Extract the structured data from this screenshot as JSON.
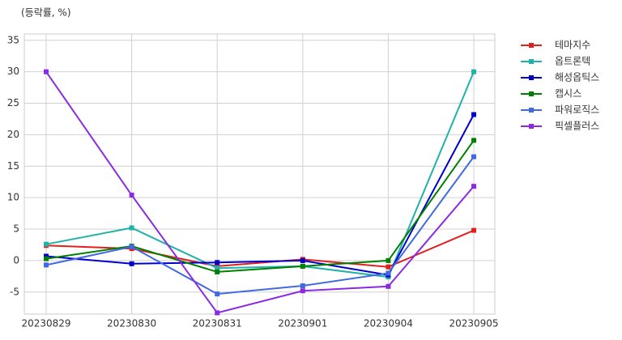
{
  "chart_data": {
    "type": "line",
    "title": "(등락률, %)",
    "categories": [
      "20230829",
      "20230830",
      "20230831",
      "20230901",
      "20230904",
      "20230905"
    ],
    "series": [
      {
        "name": "테마지수",
        "color": "#e0201c",
        "values": [
          2.4,
          1.9,
          -0.9,
          0.2,
          -1.0,
          4.8
        ]
      },
      {
        "name": "옵트론텍",
        "color": "#20b2aa",
        "values": [
          2.6,
          5.2,
          -1.2,
          -0.9,
          -2.6,
          30.0
        ]
      },
      {
        "name": "해성옵틱스",
        "color": "#0000cd",
        "values": [
          0.7,
          -0.5,
          -0.3,
          0.0,
          -2.3,
          23.2
        ]
      },
      {
        "name": "캡시스",
        "color": "#008000",
        "values": [
          0.3,
          2.3,
          -1.8,
          -0.9,
          0.0,
          19.1
        ]
      },
      {
        "name": "파워로직스",
        "color": "#4169e1",
        "values": [
          -0.7,
          2.2,
          -5.3,
          -4.0,
          -2.0,
          16.5
        ]
      },
      {
        "name": "픽셀플러스",
        "color": "#8a2be2",
        "values": [
          30.0,
          10.4,
          -8.3,
          -4.8,
          -4.1,
          11.8
        ]
      }
    ],
    "ylim": [
      -8.5,
      36
    ],
    "yticks": [
      -5,
      0,
      5,
      10,
      15,
      20,
      25,
      30,
      35
    ],
    "grid": true,
    "legend": "right"
  }
}
